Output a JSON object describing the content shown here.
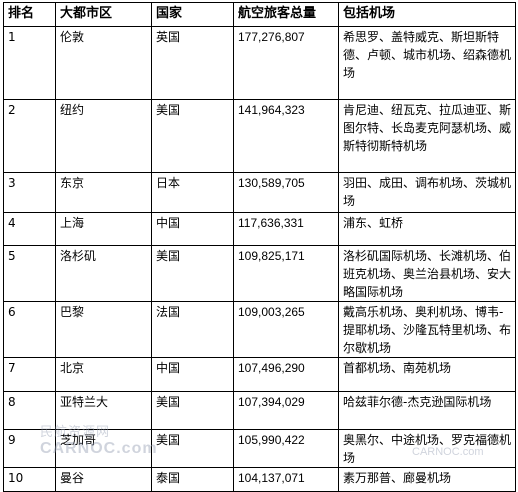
{
  "headers": [
    "排名",
    "大都市区",
    "国家",
    "航空旅客总量",
    "包括机场"
  ],
  "rows": [
    {
      "rank": "1",
      "city": "伦敦",
      "country": "英国",
      "total": "177,276,807",
      "airports": "希思罗、盖特威克、斯坦斯特德、卢顿、城市机场、绍森德机场"
    },
    {
      "rank": "2",
      "city": "纽约",
      "country": "美国",
      "total": "141,964,323",
      "airports": "肯尼迪、纽瓦克、拉瓜迪亚、斯图尔特、长岛麦克阿瑟机场、威斯特彻斯特机场"
    },
    {
      "rank": "3",
      "city": "东京",
      "country": "日本",
      "total": "130,589,705",
      "airports": "羽田、成田、调布机场、茨城机场"
    },
    {
      "rank": "4",
      "city": "上海",
      "country": "中国",
      "total": "117,636,331",
      "airports": "浦东、虹桥"
    },
    {
      "rank": "5",
      "city": "洛杉矶",
      "country": "美国",
      "total": "109,825,171",
      "airports": "洛杉矶国际机场、长滩机场、伯班克机场、奥兰治县机场、安大略国际机场"
    },
    {
      "rank": "6",
      "city": "巴黎",
      "country": "法国",
      "total": "109,003,265",
      "airports": "戴高乐机场、奥利机场、博韦-提耶机场、沙隆瓦特里机场、布尔歇机场"
    },
    {
      "rank": "7",
      "city": "北京",
      "country": "中国",
      "total": "107,496,290",
      "airports": "首都机场、南苑机场"
    },
    {
      "rank": "8",
      "city": "亚特兰大",
      "country": "美国",
      "total": "107,394,029",
      "airports": "哈兹菲尔德-杰克逊国际机场"
    },
    {
      "rank": "9",
      "city": "芝加哥",
      "country": "美国",
      "total": "105,990,422",
      "airports": "奥黑尔、中途机场、罗克福德机场"
    },
    {
      "rank": "10",
      "city": "曼谷",
      "country": "泰国",
      "total": "104,137,071",
      "airports": "素万那普、廊曼机场"
    }
  ],
  "watermark": {
    "cn": "民航资源网",
    "en": "CARNOC.com",
    "right": "CARNOC.com"
  }
}
